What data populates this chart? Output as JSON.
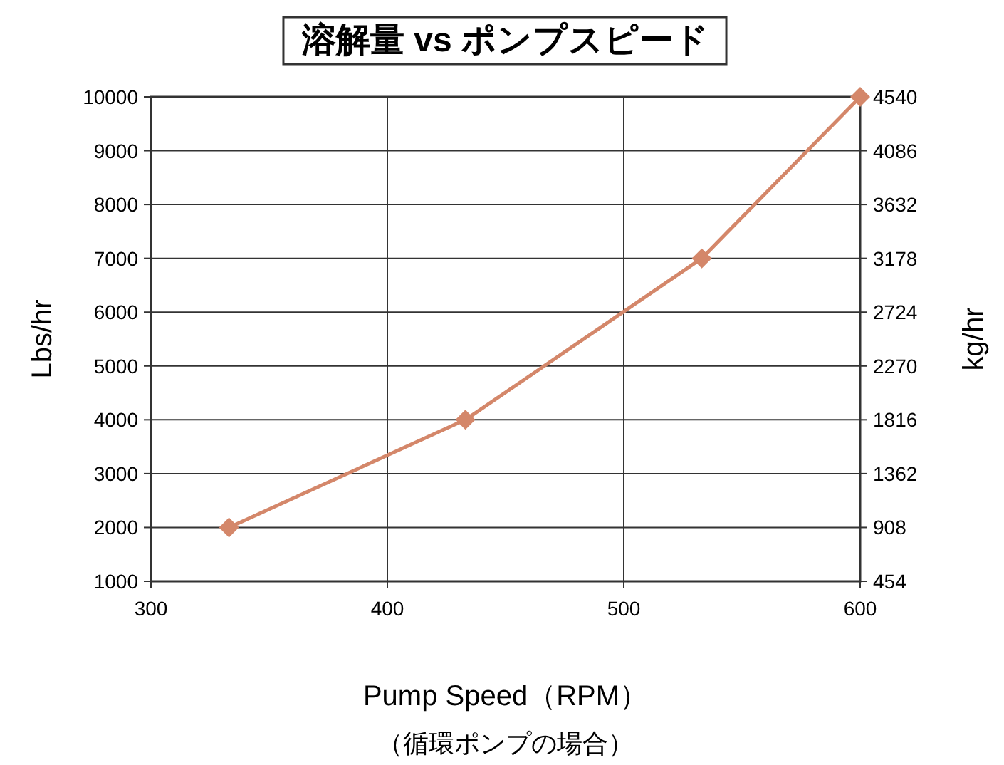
{
  "chart_data": {
    "type": "line",
    "title": "溶解量 vs ポンプスピード",
    "xlabel": "Pump Speed（RPM）",
    "ylabel": "Lbs/hr",
    "y2label": "kg/hr",
    "annotations": [
      "（循環ポンプの場合）"
    ],
    "x": [
      333,
      433,
      533,
      600
    ],
    "series": [
      {
        "color": "#d4876a",
        "values": [
          2000,
          4000,
          7000,
          10000
        ]
      }
    ],
    "marker": "diamond",
    "grid": true,
    "xlim": [
      300,
      600
    ],
    "xticks": [
      300,
      400,
      500,
      600
    ],
    "ylim": [
      1000,
      10000
    ],
    "yticks": [
      1000,
      2000,
      3000,
      4000,
      5000,
      6000,
      7000,
      8000,
      9000,
      10000
    ],
    "y2lim": [
      454,
      4540
    ],
    "y2ticks": [
      454,
      908,
      1362,
      1816,
      2270,
      2724,
      3178,
      3632,
      4086,
      4540
    ]
  }
}
